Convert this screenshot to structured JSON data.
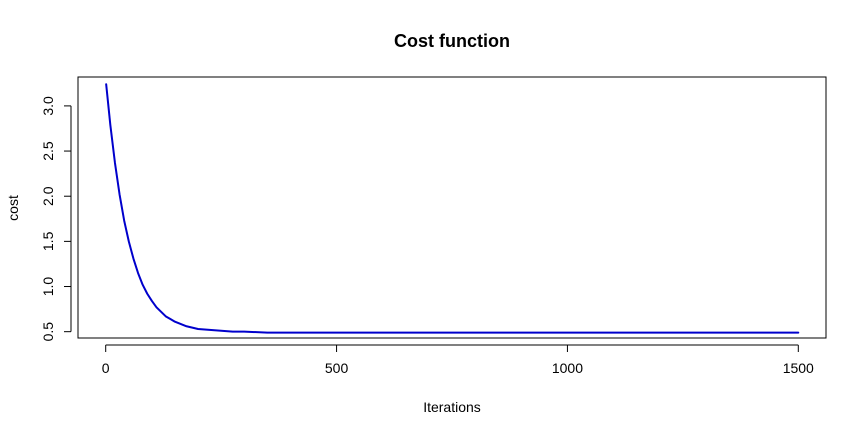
{
  "chart_data": {
    "type": "line",
    "title": "Cost function",
    "xlabel": "Iterations",
    "ylabel": "cost",
    "xlim": [
      -60,
      1560
    ],
    "ylim": [
      0.43,
      3.32
    ],
    "x_ticks": [
      0,
      500,
      1000,
      1500
    ],
    "x_tick_labels": [
      "0",
      "500",
      "1000",
      "1500"
    ],
    "y_ticks": [
      0.5,
      1.0,
      1.5,
      2.0,
      2.5,
      3.0
    ],
    "y_tick_labels": [
      "0.5",
      "1.0",
      "1.5",
      "2.0",
      "2.5",
      "3.0"
    ],
    "grid": false,
    "series": [
      {
        "color": "#0000cc",
        "x": [
          1,
          10,
          20,
          30,
          40,
          50,
          60,
          70,
          80,
          90,
          100,
          110,
          120,
          130,
          140,
          150,
          175,
          200,
          225,
          250,
          275,
          300,
          350,
          400,
          500,
          600,
          700,
          800,
          900,
          1000,
          1100,
          1200,
          1300,
          1400,
          1500
        ],
        "values": [
          3.24,
          2.79,
          2.37,
          2.02,
          1.73,
          1.5,
          1.31,
          1.15,
          1.02,
          0.92,
          0.84,
          0.77,
          0.72,
          0.67,
          0.64,
          0.61,
          0.56,
          0.53,
          0.52,
          0.51,
          0.5,
          0.5,
          0.49,
          0.49,
          0.49,
          0.49,
          0.49,
          0.49,
          0.49,
          0.49,
          0.49,
          0.49,
          0.49,
          0.49,
          0.49
        ]
      }
    ]
  }
}
